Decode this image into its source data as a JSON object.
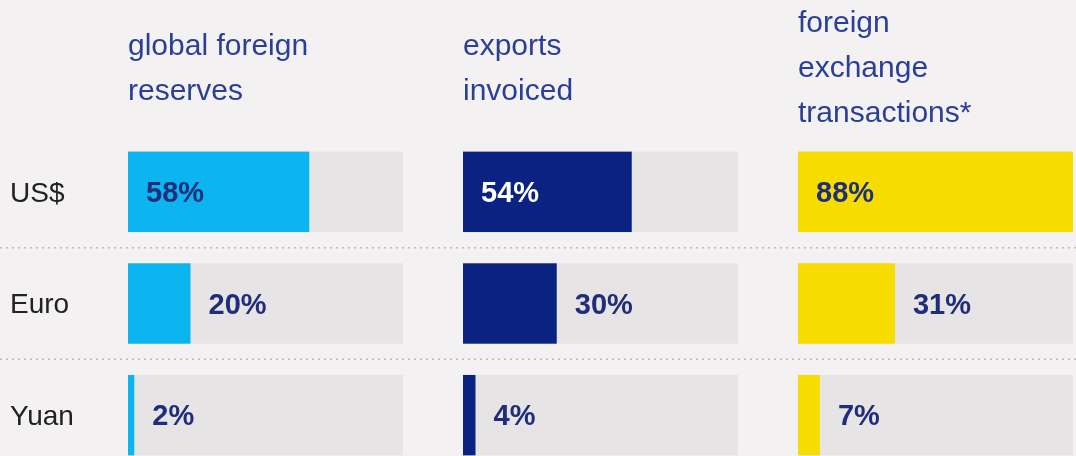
{
  "chart_data": [
    {
      "type": "bar",
      "orientation": "horizontal",
      "title": "global foreign\nreserves",
      "categories": [
        "US$",
        "Euro",
        "Yuan"
      ],
      "values": [
        58,
        20,
        2
      ],
      "value_labels": [
        "58%",
        "20%",
        "2%"
      ],
      "color": "#0cb4f0",
      "xlim": [
        0,
        88
      ],
      "tick_labels": "y"
    },
    {
      "type": "bar",
      "orientation": "horizontal",
      "title": "exports\ninvoiced",
      "categories": [
        null,
        null,
        null
      ],
      "values": [
        54,
        30,
        4
      ],
      "value_labels": [
        "54%",
        "30%",
        "4%"
      ],
      "color": "#0a2382",
      "xlim": [
        0,
        88
      ],
      "tick_labels": false
    },
    {
      "type": "bar",
      "orientation": "horizontal",
      "title": "foreign\nexchange\ntransactions*",
      "categories": [
        null,
        null,
        null
      ],
      "values": [
        88,
        31,
        7
      ],
      "value_labels": [
        "88%",
        "31%",
        "7%"
      ],
      "color": "#f7dc00",
      "xlim": [
        0,
        88
      ],
      "tick_labels": false
    }
  ]
}
